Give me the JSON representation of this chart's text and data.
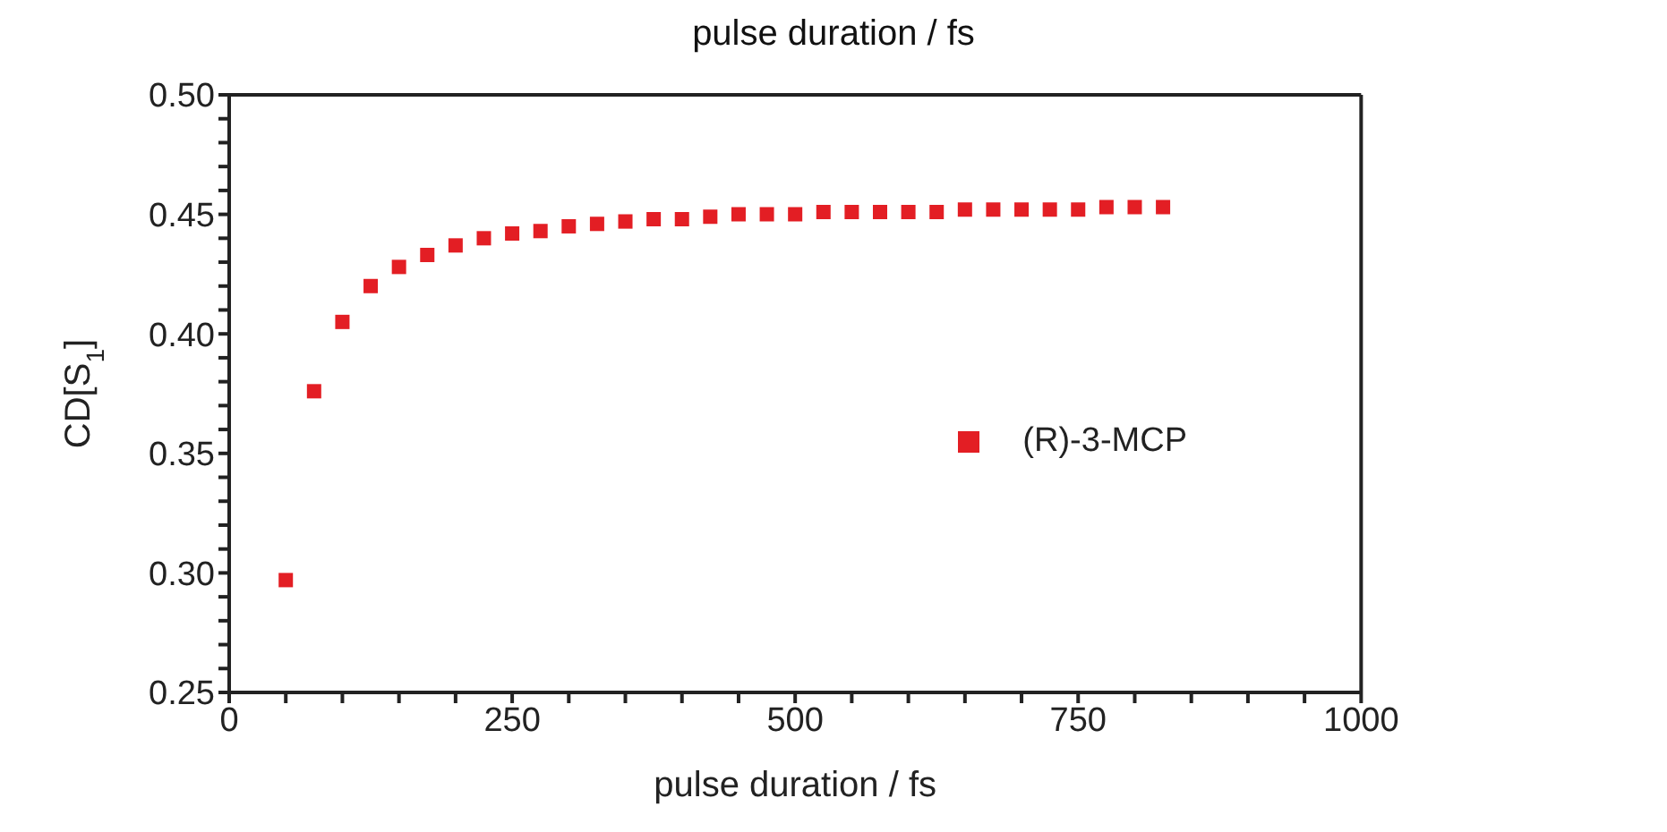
{
  "chart_data": {
    "type": "scatter",
    "title": "pulse duration / fs",
    "xlabel": "pulse duration / fs",
    "ylabel": "CD[S$_{1}$]",
    "x": [
      50,
      75,
      100,
      125,
      150,
      175,
      200,
      225,
      250,
      275,
      300,
      325,
      350,
      375,
      400,
      425,
      450,
      475,
      500,
      525,
      550,
      575,
      600,
      625,
      650,
      675,
      700,
      725,
      750,
      775,
      800,
      825
    ],
    "series": [
      {
        "name": "(R)-3-MCP",
        "color": "#e31e24",
        "values": [
          0.297,
          0.376,
          0.405,
          0.42,
          0.428,
          0.433,
          0.437,
          0.44,
          0.442,
          0.443,
          0.445,
          0.446,
          0.447,
          0.448,
          0.448,
          0.449,
          0.45,
          0.45,
          0.45,
          0.451,
          0.451,
          0.451,
          0.451,
          0.451,
          0.452,
          0.452,
          0.452,
          0.452,
          0.452,
          0.453,
          0.453,
          0.453
        ]
      }
    ],
    "xlim": [
      0,
      1000
    ],
    "xticks": [
      0,
      {
        "value": 50,
        "label": null
      },
      {
        "value": 100,
        "label": null
      },
      {
        "value": 150,
        "label": null
      },
      {
        "value": 200,
        "label": null
      },
      250,
      {
        "value": 300,
        "label": null
      },
      {
        "value": 350,
        "label": null
      },
      {
        "value": 400,
        "label": null
      },
      {
        "value": 450,
        "label": null
      },
      500,
      {
        "value": 550,
        "label": null
      },
      {
        "value": 600,
        "label": null
      },
      {
        "value": 650,
        "label": null
      },
      {
        "value": 700,
        "label": null
      },
      750,
      {
        "value": 800,
        "label": null
      },
      {
        "value": 850,
        "label": null
      },
      {
        "value": 900,
        "label": null
      },
      {
        "value": 950,
        "label": null
      },
      1000
    ],
    "ylim": [
      0.25,
      0.5
    ],
    "yticks": [
      {
        "value": 0.25,
        "label": "0.25"
      },
      {
        "value": 0.26,
        "label": null
      },
      {
        "value": 0.27,
        "label": null
      },
      {
        "value": 0.28,
        "label": null
      },
      {
        "value": 0.29,
        "label": null
      },
      {
        "value": 0.3,
        "label": "0.30"
      },
      {
        "value": 0.31,
        "label": null
      },
      {
        "value": 0.32,
        "label": null
      },
      {
        "value": 0.33,
        "label": null
      },
      {
        "value": 0.34,
        "label": null
      },
      {
        "value": 0.35,
        "label": "0.35"
      },
      {
        "value": 0.36,
        "label": null
      },
      {
        "value": 0.37,
        "label": null
      },
      {
        "value": 0.38,
        "label": null
      },
      {
        "value": 0.39,
        "label": null
      },
      {
        "value": 0.4,
        "label": "0.40"
      },
      {
        "value": 0.41,
        "label": null
      },
      {
        "value": 0.42,
        "label": null
      },
      {
        "value": 0.43,
        "label": null
      },
      {
        "value": 0.44,
        "label": null
      },
      {
        "value": 0.45,
        "label": "0.45"
      },
      {
        "value": 0.46,
        "label": null
      },
      {
        "value": 0.47,
        "label": null
      },
      {
        "value": 0.48,
        "label": null
      },
      {
        "value": 0.49,
        "label": null
      },
      {
        "value": 0.5,
        "label": "0.50"
      }
    ],
    "grid": false,
    "legend": "right",
    "marker": "square"
  }
}
